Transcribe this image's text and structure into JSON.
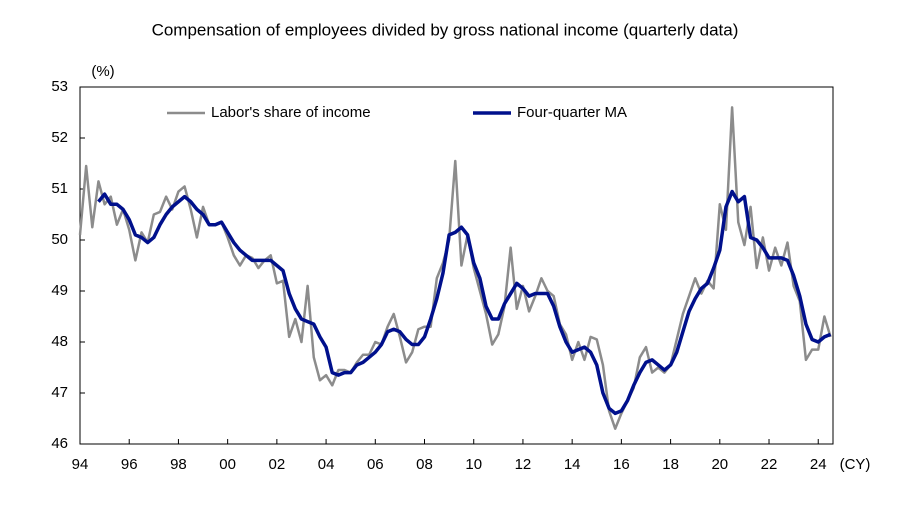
{
  "chart_data": {
    "type": "line",
    "title": "Compensation of employees divided by gross national income (quarterly data)",
    "y_unit": "(%)",
    "x_unit": "(CY)",
    "x": [
      1994,
      1994.25,
      1994.5,
      1994.75,
      1995,
      1995.25,
      1995.5,
      1995.75,
      1996,
      1996.25,
      1996.5,
      1996.75,
      1997,
      1997.25,
      1997.5,
      1997.75,
      1998,
      1998.25,
      1998.5,
      1998.75,
      1999,
      1999.25,
      1999.5,
      1999.75,
      2000,
      2000.25,
      2000.5,
      2000.75,
      2001,
      2001.25,
      2001.5,
      2001.75,
      2002,
      2002.25,
      2002.5,
      2002.75,
      2003,
      2003.25,
      2003.5,
      2003.75,
      2004,
      2004.25,
      2004.5,
      2004.75,
      2005,
      2005.25,
      2005.5,
      2005.75,
      2006,
      2006.25,
      2006.5,
      2006.75,
      2007,
      2007.25,
      2007.5,
      2007.75,
      2008,
      2008.25,
      2008.5,
      2008.75,
      2009,
      2009.25,
      2009.5,
      2009.75,
      2010,
      2010.25,
      2010.5,
      2010.75,
      2011,
      2011.25,
      2011.5,
      2011.75,
      2012,
      2012.25,
      2012.5,
      2012.75,
      2013,
      2013.25,
      2013.5,
      2013.75,
      2014,
      2014.25,
      2014.5,
      2014.75,
      2015,
      2015.25,
      2015.5,
      2015.75,
      2016,
      2016.25,
      2016.5,
      2016.75,
      2017,
      2017.25,
      2017.5,
      2017.75,
      2018,
      2018.25,
      2018.5,
      2018.75,
      2019,
      2019.25,
      2019.5,
      2019.75,
      2020,
      2020.25,
      2020.5,
      2020.75,
      2021,
      2021.25,
      2021.5,
      2021.75,
      2022,
      2022.25,
      2022.5,
      2022.75,
      2023,
      2023.25,
      2023.5,
      2023.75,
      2024,
      2024.25,
      2024.5
    ],
    "series": [
      {
        "name": "Labor's share of income",
        "color": "#8c8c8c",
        "width": 2.5,
        "values": [
          50.1,
          51.45,
          50.25,
          51.15,
          50.7,
          50.85,
          50.3,
          50.6,
          50.2,
          49.6,
          50.15,
          49.95,
          50.5,
          50.55,
          50.85,
          50.6,
          50.95,
          51.05,
          50.6,
          50.05,
          50.65,
          50.3,
          50.3,
          50.35,
          50.05,
          49.7,
          49.5,
          49.7,
          49.65,
          49.45,
          49.6,
          49.7,
          49.15,
          49.2,
          48.1,
          48.45,
          48.0,
          49.1,
          47.7,
          47.25,
          47.35,
          47.15,
          47.45,
          47.45,
          47.4,
          47.6,
          47.75,
          47.75,
          48.0,
          47.95,
          48.3,
          48.55,
          48.1,
          47.6,
          47.8,
          48.25,
          48.3,
          48.3,
          49.25,
          49.55,
          50.0,
          51.55,
          49.5,
          50.1,
          49.45,
          49.0,
          48.55,
          47.95,
          48.15,
          48.7,
          49.85,
          48.65,
          49.1,
          48.6,
          48.9,
          49.25,
          49.0,
          48.9,
          48.35,
          48.15,
          47.65,
          48.0,
          47.65,
          48.1,
          48.05,
          47.55,
          46.65,
          46.3,
          46.6,
          46.85,
          47.1,
          47.7,
          47.9,
          47.4,
          47.5,
          47.4,
          47.55,
          48.05,
          48.55,
          48.9,
          49.25,
          48.95,
          49.2,
          49.05,
          50.7,
          50.2,
          52.6,
          50.35,
          49.9,
          50.65,
          49.45,
          50.05,
          49.4,
          49.85,
          49.5,
          49.95,
          49.1,
          48.8,
          47.65,
          47.85,
          47.85,
          48.5,
          48.1
        ]
      },
      {
        "name": "Four-quarter MA",
        "color": "#00108c",
        "width": 3.5,
        "values": [
          null,
          null,
          null,
          50.75,
          50.9,
          50.7,
          50.7,
          50.6,
          50.4,
          50.1,
          50.05,
          49.95,
          50.05,
          50.3,
          50.5,
          50.65,
          50.75,
          50.85,
          50.75,
          50.6,
          50.5,
          50.3,
          50.3,
          50.35,
          50.15,
          49.95,
          49.8,
          49.7,
          49.6,
          49.6,
          49.6,
          49.6,
          49.5,
          49.4,
          48.95,
          48.65,
          48.45,
          48.4,
          48.35,
          48.1,
          47.9,
          47.4,
          47.35,
          47.4,
          47.4,
          47.55,
          47.6,
          47.7,
          47.8,
          47.95,
          48.2,
          48.25,
          48.2,
          48.05,
          47.95,
          47.95,
          48.1,
          48.45,
          48.85,
          49.35,
          50.1,
          50.15,
          50.25,
          50.1,
          49.55,
          49.25,
          48.7,
          48.45,
          48.45,
          48.75,
          48.95,
          49.15,
          49.05,
          48.9,
          48.95,
          48.95,
          48.95,
          48.7,
          48.3,
          48.0,
          47.8,
          47.85,
          47.9,
          47.8,
          47.55,
          47.0,
          46.7,
          46.6,
          46.65,
          46.85,
          47.15,
          47.4,
          47.6,
          47.65,
          47.55,
          47.45,
          47.55,
          47.8,
          48.2,
          48.6,
          48.85,
          49.05,
          49.15,
          49.45,
          49.8,
          50.65,
          50.95,
          50.75,
          50.85,
          50.05,
          50.0,
          49.85,
          49.65,
          49.65,
          49.65,
          49.6,
          49.3,
          48.9,
          48.35,
          48.05,
          48.0,
          48.1,
          48.15
        ]
      }
    ],
    "xlim": [
      1994,
      2024.6
    ],
    "xticks": [
      {
        "value": 1994,
        "label": "94"
      },
      {
        "value": 1996,
        "label": "96"
      },
      {
        "value": 1998,
        "label": "98"
      },
      {
        "value": 2000,
        "label": "00"
      },
      {
        "value": 2002,
        "label": "02"
      },
      {
        "value": 2004,
        "label": "04"
      },
      {
        "value": 2006,
        "label": "06"
      },
      {
        "value": 2008,
        "label": "08"
      },
      {
        "value": 2010,
        "label": "10"
      },
      {
        "value": 2012,
        "label": "12"
      },
      {
        "value": 2014,
        "label": "14"
      },
      {
        "value": 2016,
        "label": "16"
      },
      {
        "value": 2018,
        "label": "18"
      },
      {
        "value": 2020,
        "label": "20"
      },
      {
        "value": 2022,
        "label": "22"
      },
      {
        "value": 2024,
        "label": "24"
      }
    ],
    "ylim": [
      46,
      53
    ],
    "yticks": [
      46,
      47,
      48,
      49,
      50,
      51,
      52,
      53
    ],
    "grid": false,
    "legend": "top"
  }
}
